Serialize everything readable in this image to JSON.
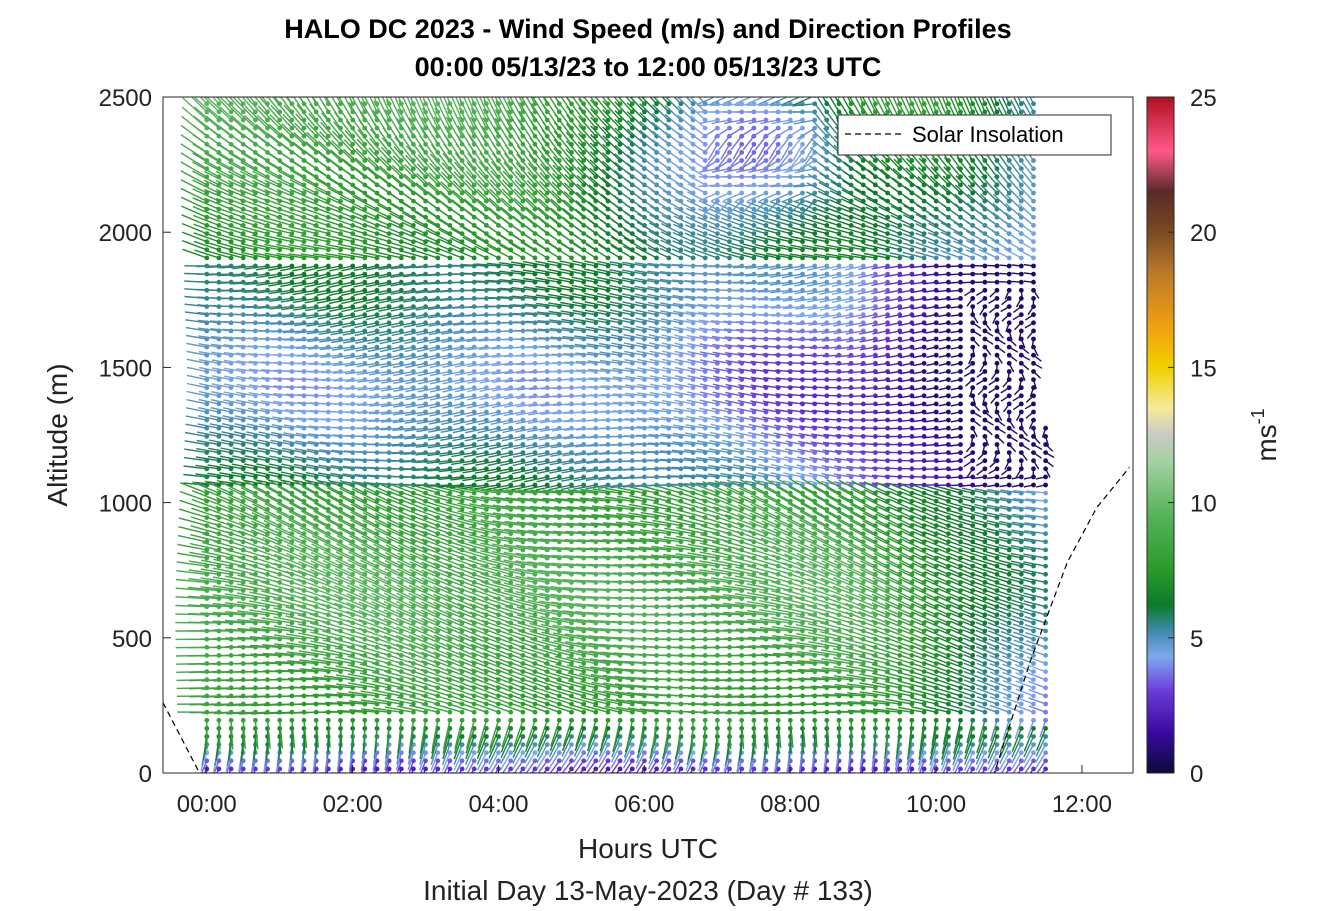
{
  "chart_data": {
    "type": "quiver",
    "title": "HALO DC 2023 - Wind Speed (m/s) and Direction Profiles",
    "subtitle": "00:00 05/13/23 to 12:00 05/13/23  UTC",
    "xlabel": "Hours UTC",
    "footer": "Initial Day 13-May-2023 (Day # 133)",
    "ylabel": "Altitude (m)",
    "x_ticks": [
      "00:00",
      "02:00",
      "04:00",
      "06:00",
      "08:00",
      "10:00",
      "12:00"
    ],
    "y_ticks": [
      "0",
      "500",
      "1000",
      "1500",
      "2000",
      "2500"
    ],
    "xlim_hours": [
      -0.6,
      12.7
    ],
    "ylim": [
      0,
      2500
    ],
    "colorbar": {
      "label": "ms",
      "label_sup": "-1",
      "ticks": [
        "0",
        "5",
        "10",
        "15",
        "20",
        "25"
      ],
      "range": [
        0,
        25
      ],
      "stops": [
        {
          "v": 0,
          "c": "#0b0b3a"
        },
        {
          "v": 1.5,
          "c": "#3a0aa0"
        },
        {
          "v": 3,
          "c": "#6a3ad8"
        },
        {
          "v": 4.3,
          "c": "#7ea8f0"
        },
        {
          "v": 5.3,
          "c": "#3c8aa6"
        },
        {
          "v": 6.2,
          "c": "#0d7a2a"
        },
        {
          "v": 7.5,
          "c": "#2a9a2a"
        },
        {
          "v": 9.5,
          "c": "#56b25a"
        },
        {
          "v": 11.5,
          "c": "#a2d2a0"
        },
        {
          "v": 12.5,
          "c": "#c9c9c9"
        },
        {
          "v": 13.5,
          "c": "#f4ec9a"
        },
        {
          "v": 15,
          "c": "#f0d000"
        },
        {
          "v": 16.5,
          "c": "#f0a010"
        },
        {
          "v": 18.5,
          "c": "#b87a2a"
        },
        {
          "v": 20,
          "c": "#7a4a22"
        },
        {
          "v": 21.5,
          "c": "#5a2a2a"
        },
        {
          "v": 23,
          "c": "#ff5a8a"
        },
        {
          "v": 25,
          "c": "#b01020"
        }
      ]
    },
    "legend": {
      "label": "Solar Insolation",
      "position": "top-right"
    },
    "series": [
      {
        "name": "Solar Insolation",
        "style": "dashed",
        "points": [
          [
            -0.6,
            260
          ],
          [
            -0.1,
            0
          ],
          [
            10.8,
            0
          ],
          [
            11.3,
            420
          ],
          [
            11.8,
            780
          ],
          [
            12.2,
            980
          ],
          [
            12.65,
            1130
          ]
        ]
      }
    ],
    "wind_field": {
      "time_start_hours": 0,
      "time_step_hours": 0.1667,
      "time_count": 70,
      "altitude_start_m": 15,
      "altitude_step_m": 30,
      "altitude_count": 84,
      "note": "wind barbs: direction = direction wind blows from, color = speed"
    }
  }
}
